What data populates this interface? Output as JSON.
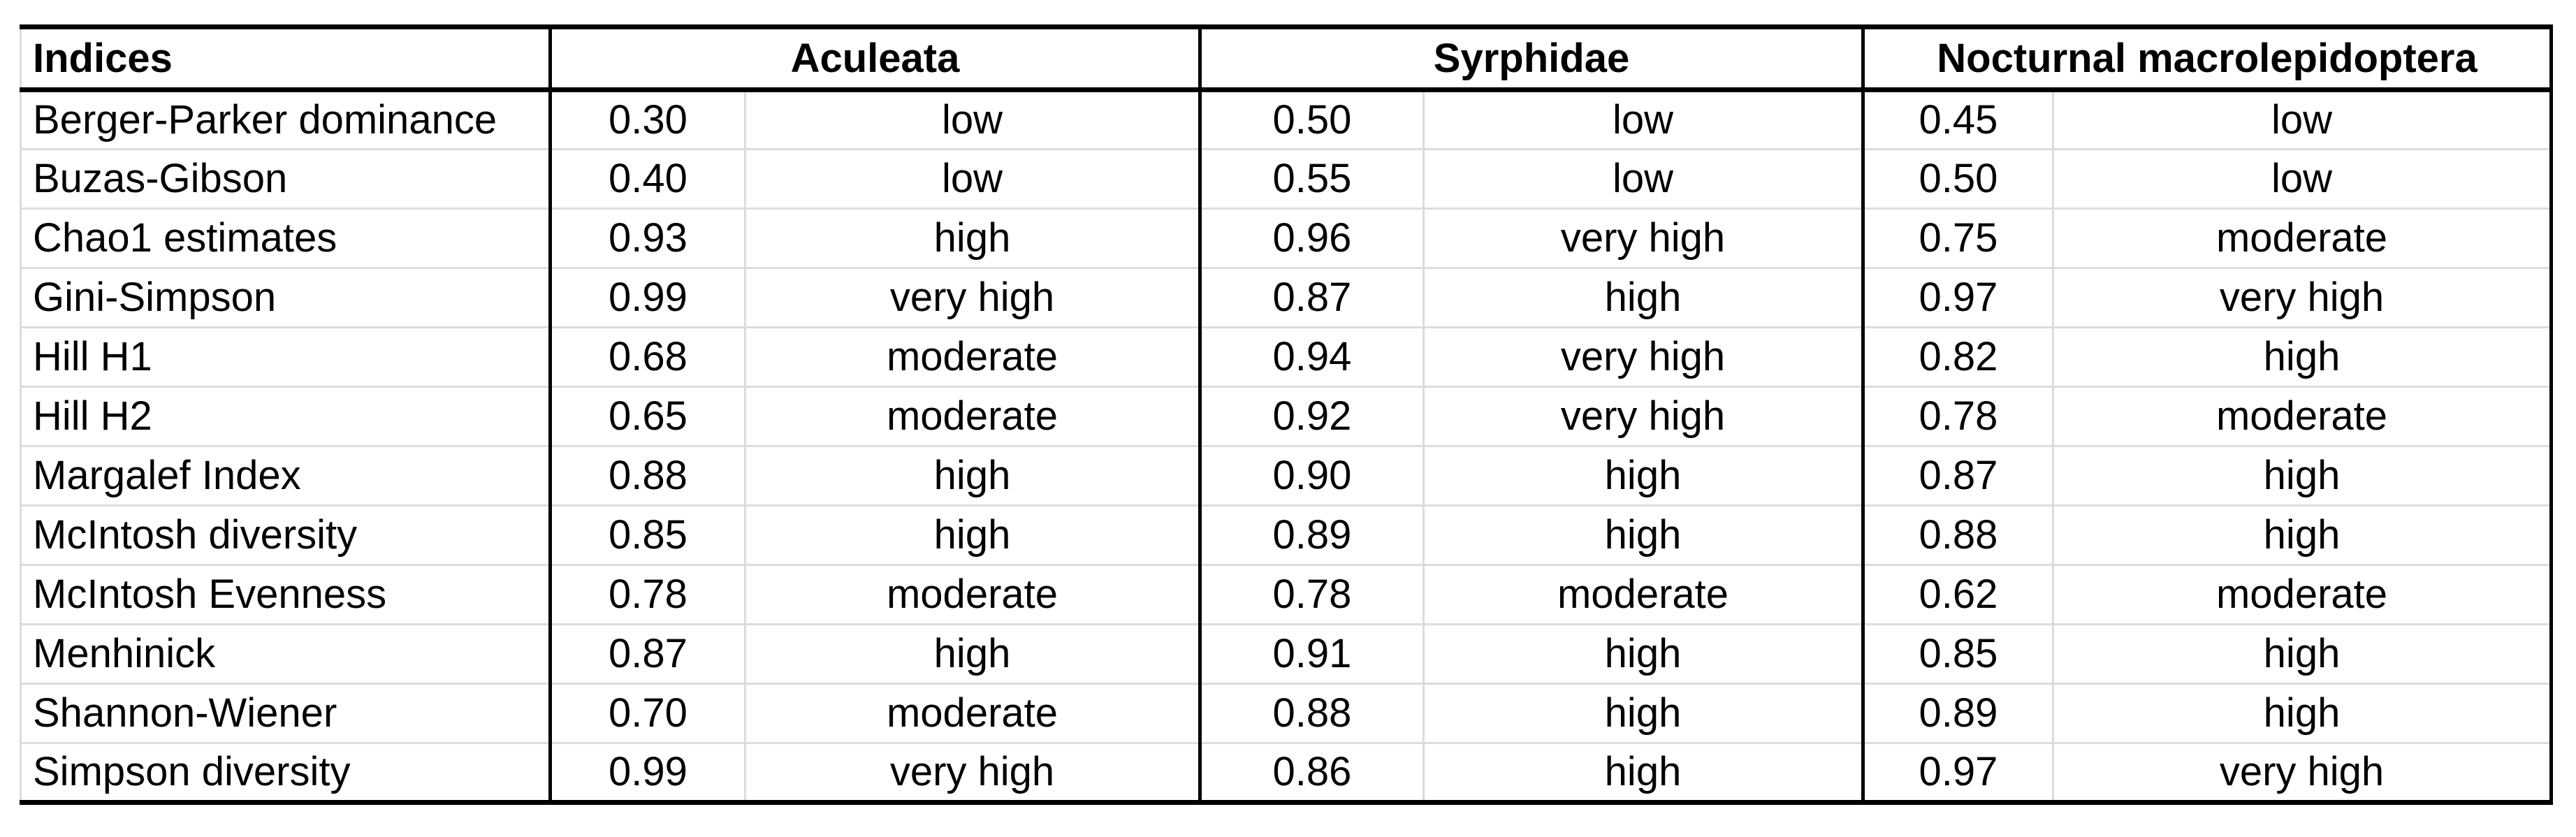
{
  "table": {
    "header": {
      "indices_label": "Indices",
      "groups": [
        "Aculeata",
        "Syrphidae",
        "Nocturnal macrolepidoptera"
      ]
    },
    "rows": [
      {
        "index": "Berger-Parker dominance",
        "aculeata": {
          "value": "0.30",
          "rating": "low"
        },
        "syrphidae": {
          "value": "0.50",
          "rating": "low"
        },
        "nocturnal": {
          "value": "0.45",
          "rating": "low"
        }
      },
      {
        "index": "Buzas-Gibson",
        "aculeata": {
          "value": "0.40",
          "rating": "low"
        },
        "syrphidae": {
          "value": "0.55",
          "rating": "low"
        },
        "nocturnal": {
          "value": "0.50",
          "rating": "low"
        }
      },
      {
        "index": "Chao1 estimates",
        "aculeata": {
          "value": "0.93",
          "rating": "high"
        },
        "syrphidae": {
          "value": "0.96",
          "rating": "very high"
        },
        "nocturnal": {
          "value": "0.75",
          "rating": "moderate"
        }
      },
      {
        "index": "Gini-Simpson",
        "aculeata": {
          "value": "0.99",
          "rating": "very high"
        },
        "syrphidae": {
          "value": "0.87",
          "rating": "high"
        },
        "nocturnal": {
          "value": "0.97",
          "rating": "very high"
        }
      },
      {
        "index": "Hill H1",
        "aculeata": {
          "value": "0.68",
          "rating": "moderate"
        },
        "syrphidae": {
          "value": "0.94",
          "rating": "very high"
        },
        "nocturnal": {
          "value": "0.82",
          "rating": "high"
        }
      },
      {
        "index": "Hill H2",
        "aculeata": {
          "value": "0.65",
          "rating": "moderate"
        },
        "syrphidae": {
          "value": "0.92",
          "rating": "very high"
        },
        "nocturnal": {
          "value": "0.78",
          "rating": "moderate"
        }
      },
      {
        "index": "Margalef Index",
        "aculeata": {
          "value": "0.88",
          "rating": "high"
        },
        "syrphidae": {
          "value": "0.90",
          "rating": "high"
        },
        "nocturnal": {
          "value": "0.87",
          "rating": "high"
        }
      },
      {
        "index": "McIntosh diversity",
        "aculeata": {
          "value": "0.85",
          "rating": "high"
        },
        "syrphidae": {
          "value": "0.89",
          "rating": "high"
        },
        "nocturnal": {
          "value": "0.88",
          "rating": "high"
        }
      },
      {
        "index": "McIntosh Evenness",
        "aculeata": {
          "value": "0.78",
          "rating": "moderate"
        },
        "syrphidae": {
          "value": "0.78",
          "rating": "moderate"
        },
        "nocturnal": {
          "value": "0.62",
          "rating": "moderate"
        }
      },
      {
        "index": "Menhinick",
        "aculeata": {
          "value": "0.87",
          "rating": "high"
        },
        "syrphidae": {
          "value": "0.91",
          "rating": "high"
        },
        "nocturnal": {
          "value": "0.85",
          "rating": "high"
        }
      },
      {
        "index": "Shannon-Wiener",
        "aculeata": {
          "value": "0.70",
          "rating": "moderate"
        },
        "syrphidae": {
          "value": "0.88",
          "rating": "high"
        },
        "nocturnal": {
          "value": "0.89",
          "rating": "high"
        }
      },
      {
        "index": "Simpson diversity",
        "aculeata": {
          "value": "0.99",
          "rating": "very high"
        },
        "syrphidae": {
          "value": "0.86",
          "rating": "high"
        },
        "nocturnal": {
          "value": "0.97",
          "rating": "very high"
        }
      }
    ],
    "colors": {
      "text": "#000000",
      "heavy_border": "#000000",
      "light_border": "#dcdcdc",
      "background": "#ffffff"
    }
  }
}
